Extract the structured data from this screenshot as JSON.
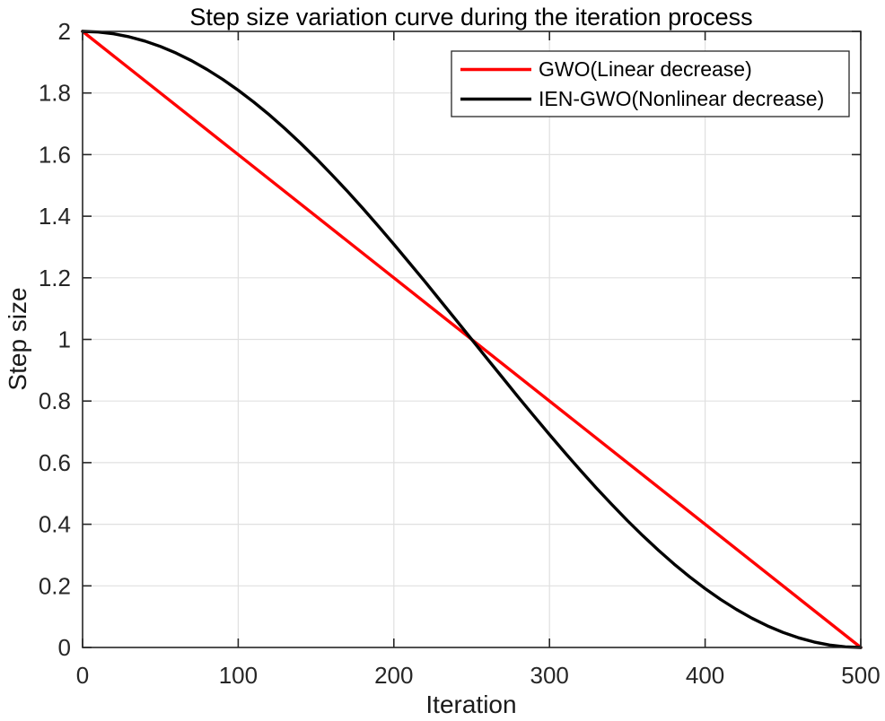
{
  "chart_data": {
    "type": "line",
    "title": "Step size variation curve during the iteration process",
    "xlabel": "Iteration",
    "ylabel": "Step size",
    "xlim": [
      0,
      500
    ],
    "ylim": [
      0,
      2
    ],
    "xticks": [
      0,
      100,
      200,
      300,
      400,
      500
    ],
    "xtick_labels": [
      "0",
      "100",
      "200",
      "300",
      "400",
      "500"
    ],
    "yticks": [
      0,
      0.2,
      0.4,
      0.6,
      0.8,
      1,
      1.2,
      1.4,
      1.6,
      1.8,
      2
    ],
    "ytick_labels": [
      "0",
      "0.2",
      "0.4",
      "0.6",
      "0.8",
      "1",
      "1.2",
      "1.4",
      "1.6",
      "1.8",
      "2"
    ],
    "grid": true,
    "legend_position": "upper-right",
    "colors": {
      "axis": "#262626",
      "grid": "#e0e0e0",
      "background": "#ffffff",
      "title": "#000000"
    },
    "series": [
      {
        "name": "GWO(Linear decrease)",
        "color": "#ff0000",
        "x": [
          0,
          500
        ],
        "y": [
          2,
          0
        ]
      },
      {
        "name": "IEN-GWO(Nonlinear decrease)",
        "color": "#000000",
        "x": [
          0,
          10,
          20,
          30,
          40,
          50,
          60,
          70,
          80,
          90,
          100,
          110,
          120,
          130,
          140,
          150,
          160,
          170,
          180,
          190,
          200,
          210,
          220,
          230,
          240,
          250,
          260,
          270,
          280,
          290,
          300,
          310,
          320,
          330,
          340,
          350,
          360,
          370,
          380,
          390,
          400,
          410,
          420,
          430,
          440,
          450,
          460,
          470,
          480,
          490,
          500
        ],
        "y": [
          2,
          1.998,
          1.9921,
          1.9823,
          1.9686,
          1.9511,
          1.9298,
          1.9048,
          1.8763,
          1.8443,
          1.809,
          1.7705,
          1.729,
          1.6845,
          1.6374,
          1.5878,
          1.5358,
          1.4818,
          1.4258,
          1.3681,
          1.309,
          1.2487,
          1.1874,
          1.1253,
          1.0628,
          1,
          0.9372,
          0.8747,
          0.8126,
          0.7513,
          0.691,
          0.6319,
          0.5742,
          0.5182,
          0.4642,
          0.4122,
          0.3626,
          0.3155,
          0.271,
          0.2295,
          0.191,
          0.1557,
          0.1237,
          0.0952,
          0.0702,
          0.0489,
          0.0314,
          0.0177,
          0.0079,
          0.002,
          0
        ]
      }
    ]
  }
}
